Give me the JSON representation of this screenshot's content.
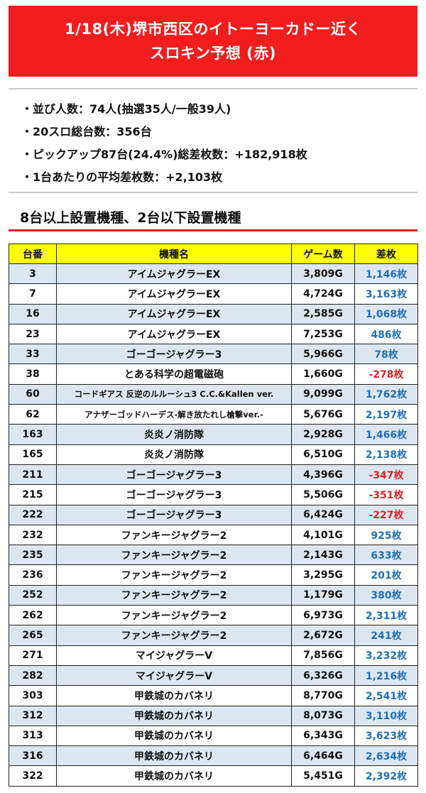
{
  "header": {
    "line1": "1/18(木)堺市西区のイトーヨーカドー近く",
    "line2": "スロキン予想 (赤)"
  },
  "stats": [
    "並び人数：74人(抽選35人/一般39人)",
    "20スロ総台数：356台",
    "ピックアップ87台(24.4%)総差枚数：+182,918枚",
    "1台あたりの平均差枚数：+2,103枚"
  ],
  "section_title": "8台以上設置機種、2台以下設置機種",
  "table": {
    "headers": [
      "台番",
      "機種名",
      "ゲーム数",
      "差枚"
    ],
    "rows": [
      {
        "no": "3",
        "name": "アイムジャグラーEX",
        "games": "3,809G",
        "diff": "1,146枚",
        "neg": false
      },
      {
        "no": "7",
        "name": "アイムジャグラーEX",
        "games": "4,724G",
        "diff": "3,163枚",
        "neg": false
      },
      {
        "no": "16",
        "name": "アイムジャグラーEX",
        "games": "2,585G",
        "diff": "1,068枚",
        "neg": false
      },
      {
        "no": "23",
        "name": "アイムジャグラーEX",
        "games": "7,253G",
        "diff": "486枚",
        "neg": false
      },
      {
        "no": "33",
        "name": "ゴーゴージャグラー3",
        "games": "5,966G",
        "diff": "78枚",
        "neg": false
      },
      {
        "no": "38",
        "name": "とある科学の超電磁砲",
        "games": "1,660G",
        "diff": "-278枚",
        "neg": true
      },
      {
        "no": "60",
        "name": "コードギアス 反逆のルルーシュ3 C.C.&Kallen ver.",
        "games": "9,099G",
        "diff": "1,762枚",
        "neg": false,
        "small": true
      },
      {
        "no": "62",
        "name": "アナザーゴッドハーデス-解き放たれし槍撃ver.-",
        "games": "5,676G",
        "diff": "2,197枚",
        "neg": false,
        "small": true
      },
      {
        "no": "163",
        "name": "炎炎ノ消防隊",
        "games": "2,928G",
        "diff": "1,466枚",
        "neg": false
      },
      {
        "no": "165",
        "name": "炎炎ノ消防隊",
        "games": "6,510G",
        "diff": "2,138枚",
        "neg": false
      },
      {
        "no": "211",
        "name": "ゴーゴージャグラー3",
        "games": "4,396G",
        "diff": "-347枚",
        "neg": true
      },
      {
        "no": "215",
        "name": "ゴーゴージャグラー3",
        "games": "5,506G",
        "diff": "-351枚",
        "neg": true
      },
      {
        "no": "222",
        "name": "ゴーゴージャグラー3",
        "games": "6,424G",
        "diff": "-227枚",
        "neg": true
      },
      {
        "no": "232",
        "name": "ファンキージャグラー2",
        "games": "4,101G",
        "diff": "925枚",
        "neg": false
      },
      {
        "no": "235",
        "name": "ファンキージャグラー2",
        "games": "2,143G",
        "diff": "633枚",
        "neg": false
      },
      {
        "no": "236",
        "name": "ファンキージャグラー2",
        "games": "3,295G",
        "diff": "201枚",
        "neg": false
      },
      {
        "no": "252",
        "name": "ファンキージャグラー2",
        "games": "1,179G",
        "diff": "380枚",
        "neg": false
      },
      {
        "no": "262",
        "name": "ファンキージャグラー2",
        "games": "6,973G",
        "diff": "2,311枚",
        "neg": false
      },
      {
        "no": "265",
        "name": "ファンキージャグラー2",
        "games": "2,672G",
        "diff": "241枚",
        "neg": false
      },
      {
        "no": "271",
        "name": "マイジャグラーV",
        "games": "7,856G",
        "diff": "3,232枚",
        "neg": false
      },
      {
        "no": "282",
        "name": "マイジャグラーV",
        "games": "6,326G",
        "diff": "1,216枚",
        "neg": false
      },
      {
        "no": "303",
        "name": "甲鉄城のカバネリ",
        "games": "8,770G",
        "diff": "2,541枚",
        "neg": false
      },
      {
        "no": "312",
        "name": "甲鉄城のカバネリ",
        "games": "8,073G",
        "diff": "3,110枚",
        "neg": false
      },
      {
        "no": "313",
        "name": "甲鉄城のカバネリ",
        "games": "6,343G",
        "diff": "3,623枚",
        "neg": false
      },
      {
        "no": "316",
        "name": "甲鉄城のカバネリ",
        "games": "6,464G",
        "diff": "2,634枚",
        "neg": false
      },
      {
        "no": "322",
        "name": "甲鉄城のカバネリ",
        "games": "5,451G",
        "diff": "2,392枚",
        "neg": false
      }
    ]
  },
  "colors": {
    "banner": "#f21d1d",
    "header_row": "#ffff00",
    "stripe": "#dce6f1",
    "positive": "#1f6fb5",
    "negative": "#e02020"
  }
}
